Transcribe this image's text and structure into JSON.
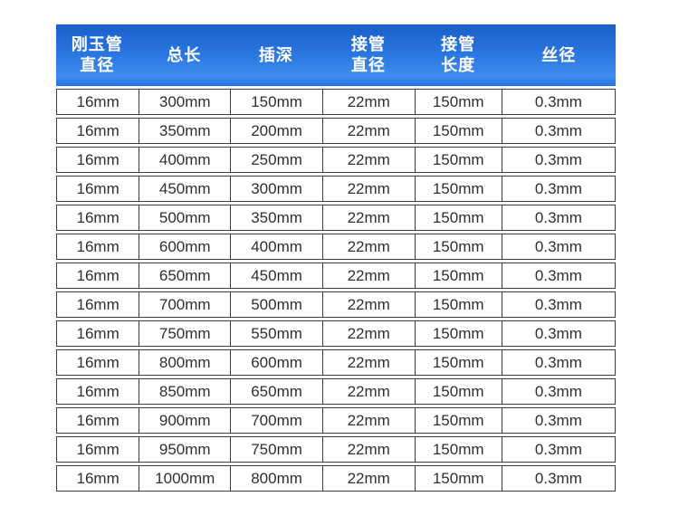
{
  "page": {
    "background_color": "#ffffff"
  },
  "table": {
    "title": "corundum-tube-specification-table",
    "style": {
      "header_text_color": "#ffffff",
      "header_gradient": [
        "#1a5fc9",
        "#2b77e1",
        "#3f8def",
        "#2273e0"
      ],
      "row_border_color": "#3c3c3c",
      "cell_text_color": "#2f2f2f"
    },
    "header": {
      "columns": [
        {
          "lines": [
            "刚玉管",
            "直径"
          ]
        },
        {
          "lines": [
            "总长"
          ]
        },
        {
          "lines": [
            "插深"
          ]
        },
        {
          "lines": [
            "接管",
            "直径"
          ]
        },
        {
          "lines": [
            "接管",
            "长度"
          ]
        },
        {
          "lines": [
            "丝径"
          ]
        }
      ]
    },
    "rows": [
      [
        "16mm",
        "300mm",
        "150mm",
        "22mm",
        "150mm",
        "0.3mm"
      ],
      [
        "16mm",
        "350mm",
        "200mm",
        "22mm",
        "150mm",
        "0.3mm"
      ],
      [
        "16mm",
        "400mm",
        "250mm",
        "22mm",
        "150mm",
        "0.3mm"
      ],
      [
        "16mm",
        "450mm",
        "300mm",
        "22mm",
        "150mm",
        "0.3mm"
      ],
      [
        "16mm",
        "500mm",
        "350mm",
        "22mm",
        "150mm",
        "0.3mm"
      ],
      [
        "16mm",
        "600mm",
        "400mm",
        "22mm",
        "150mm",
        "0.3mm"
      ],
      [
        "16mm",
        "650mm",
        "450mm",
        "22mm",
        "150mm",
        "0.3mm"
      ],
      [
        "16mm",
        "700mm",
        "500mm",
        "22mm",
        "150mm",
        "0.3mm"
      ],
      [
        "16mm",
        "750mm",
        "550mm",
        "22mm",
        "150mm",
        "0.3mm"
      ],
      [
        "16mm",
        "800mm",
        "600mm",
        "22mm",
        "150mm",
        "0.3mm"
      ],
      [
        "16mm",
        "850mm",
        "650mm",
        "22mm",
        "150mm",
        "0.3mm"
      ],
      [
        "16mm",
        "900mm",
        "700mm",
        "22mm",
        "150mm",
        "0.3mm"
      ],
      [
        "16mm",
        "950mm",
        "750mm",
        "22mm",
        "150mm",
        "0.3mm"
      ],
      [
        "16mm",
        "1000mm",
        "800mm",
        "22mm",
        "150mm",
        "0.3mm"
      ]
    ]
  }
}
